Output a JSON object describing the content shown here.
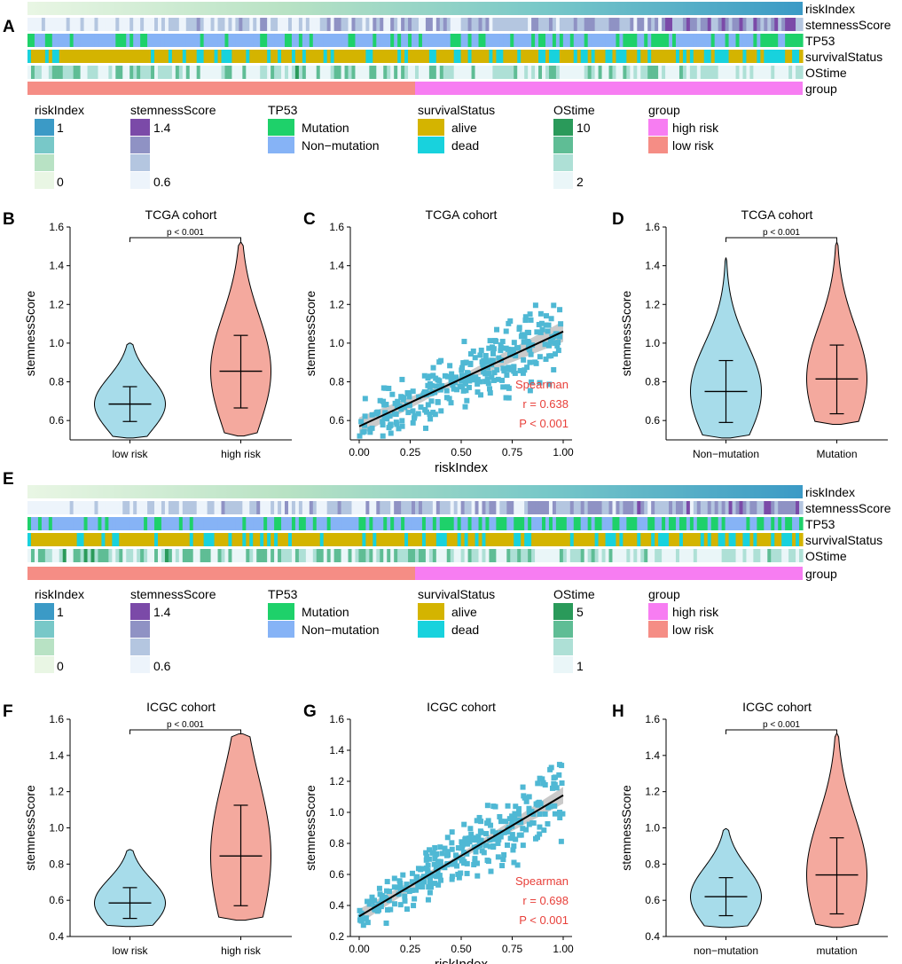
{
  "panels": {
    "A": "A",
    "B": "B",
    "C": "C",
    "D": "D",
    "E": "E",
    "F": "F",
    "G": "G",
    "H": "H"
  },
  "heatmap_rows": [
    "riskIndex",
    "stemnessScore",
    "TP53",
    "survivalStatus",
    "OStime",
    "group"
  ],
  "heatmap_top": {
    "colors": {
      "riskIndex": [
        "#e9f6e4",
        "#b8e2c4",
        "#78c8c8",
        "#3b9ac6"
      ],
      "stemnessScore": [
        "#edf4fb",
        "#b4c6e0",
        "#8f92c4",
        "#7b4aa8"
      ],
      "TP53": {
        "Mutation": "#1ed16a",
        "Non-mutation": "#86b3f6"
      },
      "survivalStatus": {
        "alive": "#d4b400",
        "dead": "#18d2dd"
      },
      "OStime": [
        "#eaf6f8",
        "#aee0d6",
        "#5fbd95",
        "#2a9a5a"
      ],
      "group": {
        "high risk": "#f77df2",
        "low risk": "#f58d85"
      }
    },
    "legend": {
      "riskIndex": {
        "title": "riskIndex",
        "max": "1",
        "min": "0"
      },
      "stemnessScore": {
        "title": "stemnessScore",
        "max": "1.4",
        "min": "0.6"
      },
      "TP53": {
        "title": "TP53",
        "items": [
          "Mutation",
          "Non−mutation"
        ]
      },
      "survivalStatus": {
        "title": "survivalStatus",
        "items": [
          "alive",
          "dead"
        ]
      },
      "OStime": {
        "title": "OStime",
        "max": "10",
        "min": "2"
      },
      "group": {
        "title": "group",
        "items": [
          "high risk",
          "low risk"
        ]
      }
    }
  },
  "heatmap_bottom": {
    "legend": {
      "riskIndex": {
        "title": "riskIndex",
        "max": "1",
        "min": "0"
      },
      "stemnessScore": {
        "title": "stemnessScore",
        "max": "1.4",
        "min": "0.6"
      },
      "TP53": {
        "title": "TP53",
        "items": [
          "Mutation",
          "Non−mutation"
        ]
      },
      "survivalStatus": {
        "title": "survivalStatus",
        "items": [
          "alive",
          "dead"
        ]
      },
      "OStime": {
        "title": "OStime",
        "max": "5",
        "min": "1"
      },
      "group": {
        "title": "group",
        "items": [
          "high risk",
          "low risk"
        ]
      }
    }
  },
  "chart_data": [
    {
      "panel": "B",
      "type": "violin",
      "title": "TCGA cohort",
      "xlabel": "",
      "ylabel": "stemnessScore",
      "ylim": [
        0.5,
        1.6
      ],
      "yticks": [
        0.6,
        0.8,
        1.0,
        1.2,
        1.4,
        1.6
      ],
      "categories": [
        "low risk",
        "high risk"
      ],
      "series": [
        {
          "name": "low risk",
          "color": "#a7dcea",
          "median": 0.685,
          "lower": 0.595,
          "upper": 0.775,
          "min": 0.51,
          "max": 1.0
        },
        {
          "name": "high risk",
          "color": "#f4a99e",
          "median": 0.855,
          "lower": 0.665,
          "upper": 1.04,
          "min": 0.52,
          "max": 1.52
        }
      ],
      "annotation": "p < 0.001"
    },
    {
      "panel": "C",
      "type": "scatter",
      "title": "TCGA cohort",
      "xlabel": "riskIndex",
      "ylabel": "stemnessScore",
      "xlim": [
        0,
        1
      ],
      "ylim": [
        0.5,
        1.6
      ],
      "xticks": [
        0.0,
        0.25,
        0.5,
        0.75,
        1.0
      ],
      "xticklabels": [
        "0.00",
        "0.25",
        "0.50",
        "0.75",
        "1.00"
      ],
      "yticks": [
        0.6,
        0.8,
        1.0,
        1.2,
        1.4,
        1.6
      ],
      "fit": {
        "intercept": 0.57,
        "slope": 0.49
      },
      "stats": [
        "Spearman",
        "r = 0.638",
        "P < 0.001"
      ]
    },
    {
      "panel": "D",
      "type": "violin",
      "title": "TCGA cohort",
      "xlabel": "",
      "ylabel": "stemnessScore",
      "ylim": [
        0.5,
        1.6
      ],
      "yticks": [
        0.6,
        0.8,
        1.0,
        1.2,
        1.4,
        1.6
      ],
      "categories": [
        "Non−mutation",
        "Mutation"
      ],
      "series": [
        {
          "name": "Non−mutation",
          "color": "#a7dcea",
          "median": 0.75,
          "lower": 0.59,
          "upper": 0.91,
          "min": 0.51,
          "max": 1.44
        },
        {
          "name": "Mutation",
          "color": "#f4a99e",
          "median": 0.815,
          "lower": 0.635,
          "upper": 0.99,
          "min": 0.58,
          "max": 1.52
        }
      ],
      "annotation": "p < 0.001"
    },
    {
      "panel": "F",
      "type": "violin",
      "title": "ICGC cohort",
      "xlabel": "",
      "ylabel": "stemnessScore",
      "ylim": [
        0.4,
        1.6
      ],
      "yticks": [
        0.4,
        0.6,
        0.8,
        1.0,
        1.2,
        1.4,
        1.6
      ],
      "categories": [
        "low risk",
        "high risk"
      ],
      "series": [
        {
          "name": "low risk",
          "color": "#a7dcea",
          "median": 0.585,
          "lower": 0.5,
          "upper": 0.67,
          "min": 0.455,
          "max": 0.88
        },
        {
          "name": "high risk",
          "color": "#f4a99e",
          "median": 0.845,
          "lower": 0.57,
          "upper": 1.125,
          "min": 0.49,
          "max": 1.52
        }
      ],
      "annotation": "p < 0.001"
    },
    {
      "panel": "G",
      "type": "scatter",
      "title": "ICGC cohort",
      "xlabel": "riskIndex",
      "ylabel": "stemnessScore",
      "xlim": [
        0,
        1
      ],
      "ylim": [
        0.2,
        1.6
      ],
      "xticks": [
        0.0,
        0.25,
        0.5,
        0.75,
        1.0
      ],
      "xticklabels": [
        "0.00",
        "0.25",
        "0.50",
        "0.75",
        "1.00"
      ],
      "yticks": [
        0.2,
        0.4,
        0.6,
        0.8,
        1.0,
        1.2,
        1.4,
        1.6
      ],
      "fit": {
        "intercept": 0.33,
        "slope": 0.78
      },
      "stats": [
        "Spearman",
        "r = 0.698",
        "P < 0.001"
      ]
    },
    {
      "panel": "H",
      "type": "violin",
      "title": "ICGC cohort",
      "xlabel": "",
      "ylabel": "stemnessScore",
      "ylim": [
        0.4,
        1.6
      ],
      "yticks": [
        0.4,
        0.6,
        0.8,
        1.0,
        1.2,
        1.4,
        1.6
      ],
      "categories": [
        "non−mutation",
        "mutation"
      ],
      "series": [
        {
          "name": "non−mutation",
          "color": "#a7dcea",
          "median": 0.62,
          "lower": 0.515,
          "upper": 0.725,
          "min": 0.45,
          "max": 0.995
        },
        {
          "name": "mutation",
          "color": "#f4a99e",
          "median": 0.74,
          "lower": 0.525,
          "upper": 0.945,
          "min": 0.45,
          "max": 1.52
        }
      ],
      "annotation": "p < 0.001"
    }
  ]
}
